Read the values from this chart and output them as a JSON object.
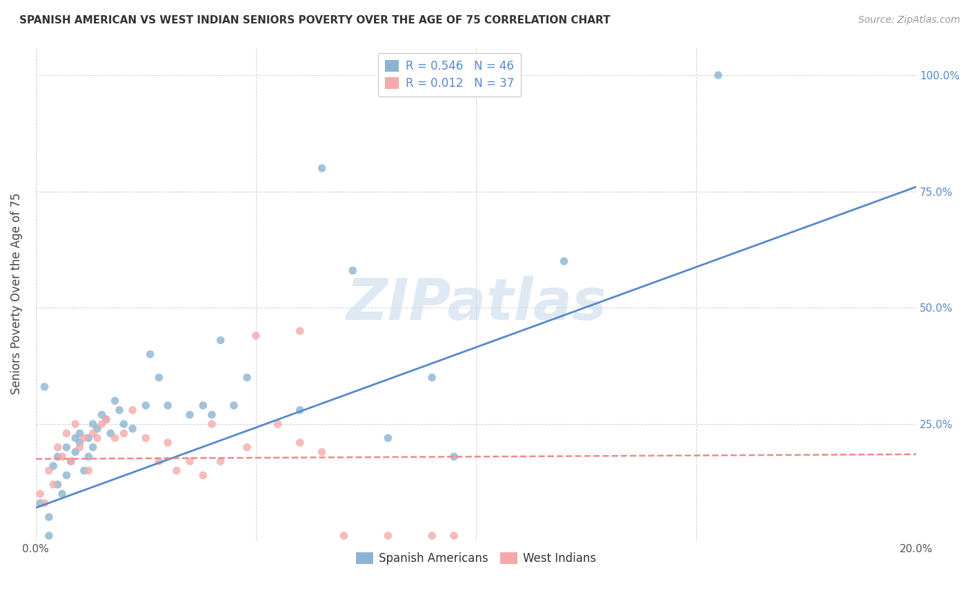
{
  "title": "SPANISH AMERICAN VS WEST INDIAN SENIORS POVERTY OVER THE AGE OF 75 CORRELATION CHART",
  "source": "Source: ZipAtlas.com",
  "ylabel": "Seniors Poverty Over the Age of 75",
  "xlim": [
    0.0,
    0.2
  ],
  "ylim": [
    0.0,
    1.06
  ],
  "blue_R": 0.546,
  "blue_N": 46,
  "pink_R": 0.012,
  "pink_N": 37,
  "legend_label_blue": "Spanish Americans",
  "legend_label_pink": "West Indians",
  "blue_color": "#8CB4D2",
  "pink_color": "#F4AAAA",
  "blue_line_color": "#5588CC",
  "pink_line_color": "#EE8888",
  "blue_scatter_x": [
    0.001,
    0.002,
    0.003,
    0.004,
    0.005,
    0.005,
    0.006,
    0.007,
    0.007,
    0.008,
    0.009,
    0.009,
    0.01,
    0.01,
    0.011,
    0.012,
    0.012,
    0.013,
    0.013,
    0.014,
    0.015,
    0.016,
    0.017,
    0.018,
    0.019,
    0.02,
    0.022,
    0.025,
    0.026,
    0.028,
    0.03,
    0.035,
    0.038,
    0.04,
    0.042,
    0.045,
    0.048,
    0.06,
    0.065,
    0.072,
    0.08,
    0.09,
    0.095,
    0.12,
    0.155,
    0.003
  ],
  "blue_scatter_y": [
    0.08,
    0.33,
    0.05,
    0.16,
    0.12,
    0.18,
    0.1,
    0.14,
    0.2,
    0.17,
    0.22,
    0.19,
    0.21,
    0.23,
    0.15,
    0.18,
    0.22,
    0.25,
    0.2,
    0.24,
    0.27,
    0.26,
    0.23,
    0.3,
    0.28,
    0.25,
    0.24,
    0.29,
    0.4,
    0.35,
    0.29,
    0.27,
    0.29,
    0.27,
    0.43,
    0.29,
    0.35,
    0.28,
    0.8,
    0.58,
    0.22,
    0.35,
    0.18,
    0.6,
    1.0,
    0.01
  ],
  "pink_scatter_x": [
    0.001,
    0.002,
    0.003,
    0.004,
    0.005,
    0.006,
    0.007,
    0.008,
    0.009,
    0.01,
    0.011,
    0.012,
    0.013,
    0.014,
    0.015,
    0.016,
    0.018,
    0.02,
    0.022,
    0.025,
    0.028,
    0.03,
    0.032,
    0.035,
    0.038,
    0.04,
    0.042,
    0.048,
    0.05,
    0.055,
    0.06,
    0.065,
    0.07,
    0.08,
    0.09,
    0.095,
    0.06
  ],
  "pink_scatter_y": [
    0.1,
    0.08,
    0.15,
    0.12,
    0.2,
    0.18,
    0.23,
    0.17,
    0.25,
    0.2,
    0.22,
    0.15,
    0.23,
    0.22,
    0.25,
    0.26,
    0.22,
    0.23,
    0.28,
    0.22,
    0.17,
    0.21,
    0.15,
    0.17,
    0.14,
    0.25,
    0.17,
    0.2,
    0.44,
    0.25,
    0.21,
    0.19,
    0.01,
    0.01,
    0.01,
    0.01,
    0.45
  ],
  "watermark_text": "ZIPatlas",
  "background_color": "#FFFFFF",
  "grid_color": "#CCCCCC",
  "blue_trend_x0": 0.0,
  "blue_trend_y0": 0.07,
  "blue_trend_x1": 0.2,
  "blue_trend_y1": 0.76,
  "pink_trend_x0": 0.0,
  "pink_trend_y0": 0.175,
  "pink_trend_x1": 0.2,
  "pink_trend_y1": 0.185,
  "title_fontsize": 11,
  "source_fontsize": 10,
  "ylabel_fontsize": 12,
  "tick_fontsize": 11,
  "legend_fontsize": 12,
  "watermark_fontsize": 60
}
